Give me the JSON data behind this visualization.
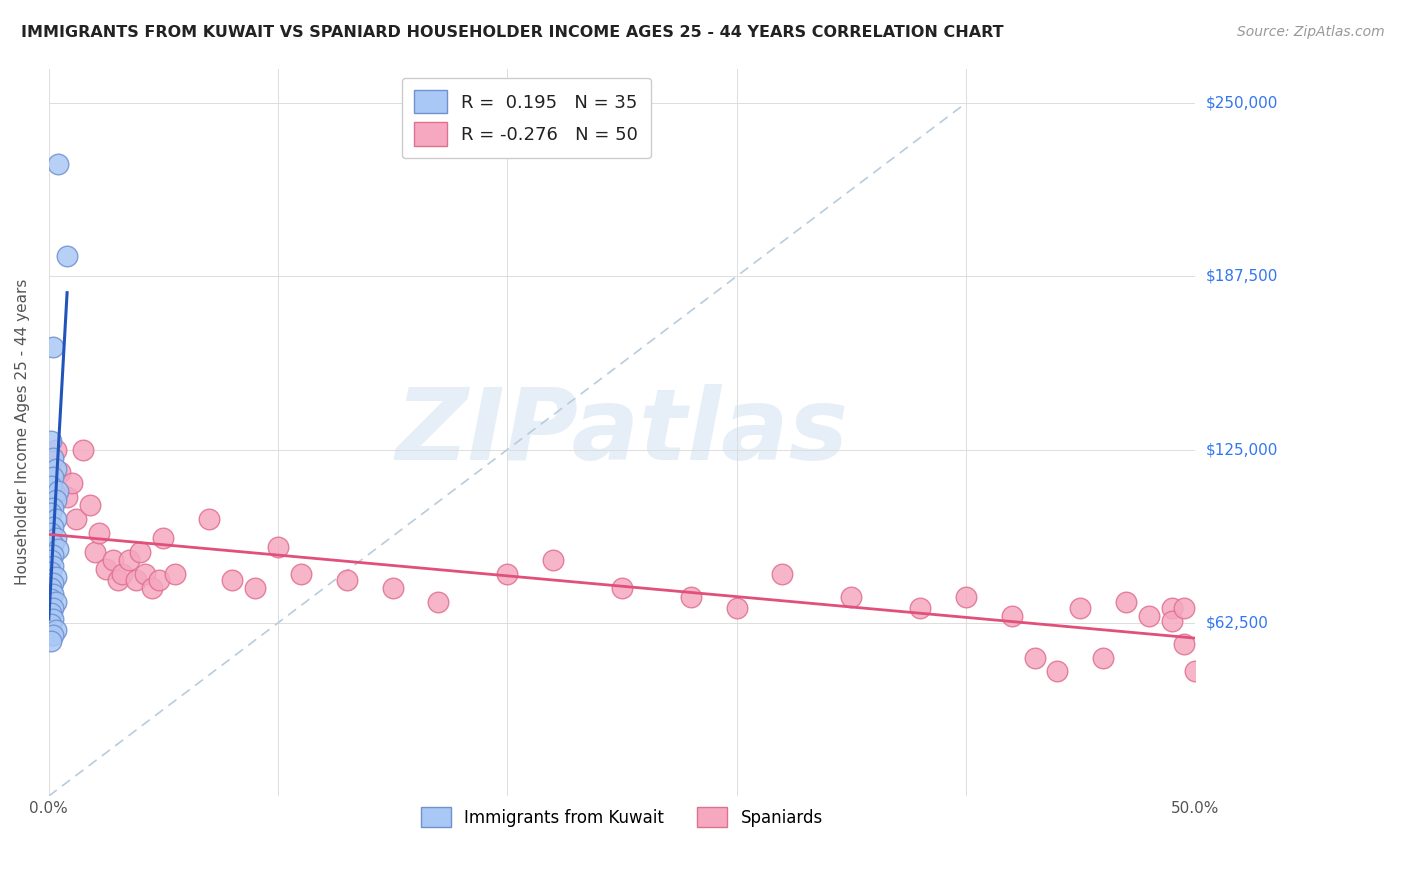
{
  "title": "IMMIGRANTS FROM KUWAIT VS SPANIARD HOUSEHOLDER INCOME AGES 25 - 44 YEARS CORRELATION CHART",
  "source": "Source: ZipAtlas.com",
  "ylabel": "Householder Income Ages 25 - 44 years",
  "xlim": [
    0.0,
    0.5
  ],
  "ylim": [
    0,
    262500
  ],
  "yticks_right": [
    62500,
    125000,
    187500,
    250000
  ],
  "ytick_labels_right": [
    "$62,500",
    "$125,000",
    "$187,500",
    "$250,000"
  ],
  "grid_color": "#dddddd",
  "background_color": "#ffffff",
  "kuwait_color": "#aac8f5",
  "spaniard_color": "#f5a8c0",
  "kuwait_edge": "#7090d0",
  "spaniard_edge": "#e07090",
  "blue_line_color": "#2255bb",
  "pink_line_color": "#e0507a",
  "diag_line_color": "#b8ccdd",
  "legend_r_kuwait": "0.195",
  "legend_n_kuwait": "35",
  "legend_r_spaniard": "-0.276",
  "legend_n_spaniard": "50",
  "watermark_text": "ZIPatlas",
  "kuwait_x": [
    0.004,
    0.008,
    0.002,
    0.001,
    0.002,
    0.003,
    0.002,
    0.001,
    0.004,
    0.003,
    0.002,
    0.001,
    0.003,
    0.002,
    0.001,
    0.003,
    0.002,
    0.004,
    0.002,
    0.001,
    0.002,
    0.001,
    0.003,
    0.002,
    0.001,
    0.002,
    0.001,
    0.003,
    0.002,
    0.001,
    0.002,
    0.001,
    0.003,
    0.002,
    0.001
  ],
  "kuwait_y": [
    228000,
    195000,
    162000,
    128000,
    122000,
    118000,
    115000,
    112000,
    110000,
    107000,
    104000,
    102000,
    100000,
    97000,
    95000,
    93000,
    91000,
    89000,
    87000,
    85000,
    83000,
    81000,
    79000,
    77000,
    75000,
    73000,
    71000,
    70000,
    68000,
    66000,
    64000,
    62000,
    60000,
    58000,
    56000
  ],
  "spaniard_x": [
    0.003,
    0.005,
    0.008,
    0.01,
    0.012,
    0.015,
    0.018,
    0.02,
    0.022,
    0.025,
    0.028,
    0.03,
    0.032,
    0.035,
    0.038,
    0.04,
    0.042,
    0.045,
    0.048,
    0.05,
    0.055,
    0.07,
    0.08,
    0.09,
    0.1,
    0.11,
    0.13,
    0.15,
    0.17,
    0.2,
    0.22,
    0.25,
    0.28,
    0.3,
    0.32,
    0.35,
    0.38,
    0.4,
    0.42,
    0.45,
    0.47,
    0.48,
    0.49,
    0.495,
    0.49,
    0.495,
    0.43,
    0.44,
    0.46,
    0.5
  ],
  "spaniard_y": [
    125000,
    117000,
    108000,
    113000,
    100000,
    125000,
    105000,
    88000,
    95000,
    82000,
    85000,
    78000,
    80000,
    85000,
    78000,
    88000,
    80000,
    75000,
    78000,
    93000,
    80000,
    100000,
    78000,
    75000,
    90000,
    80000,
    78000,
    75000,
    70000,
    80000,
    85000,
    75000,
    72000,
    68000,
    80000,
    72000,
    68000,
    72000,
    65000,
    68000,
    70000,
    65000,
    68000,
    55000,
    63000,
    68000,
    50000,
    45000,
    50000,
    45000
  ]
}
